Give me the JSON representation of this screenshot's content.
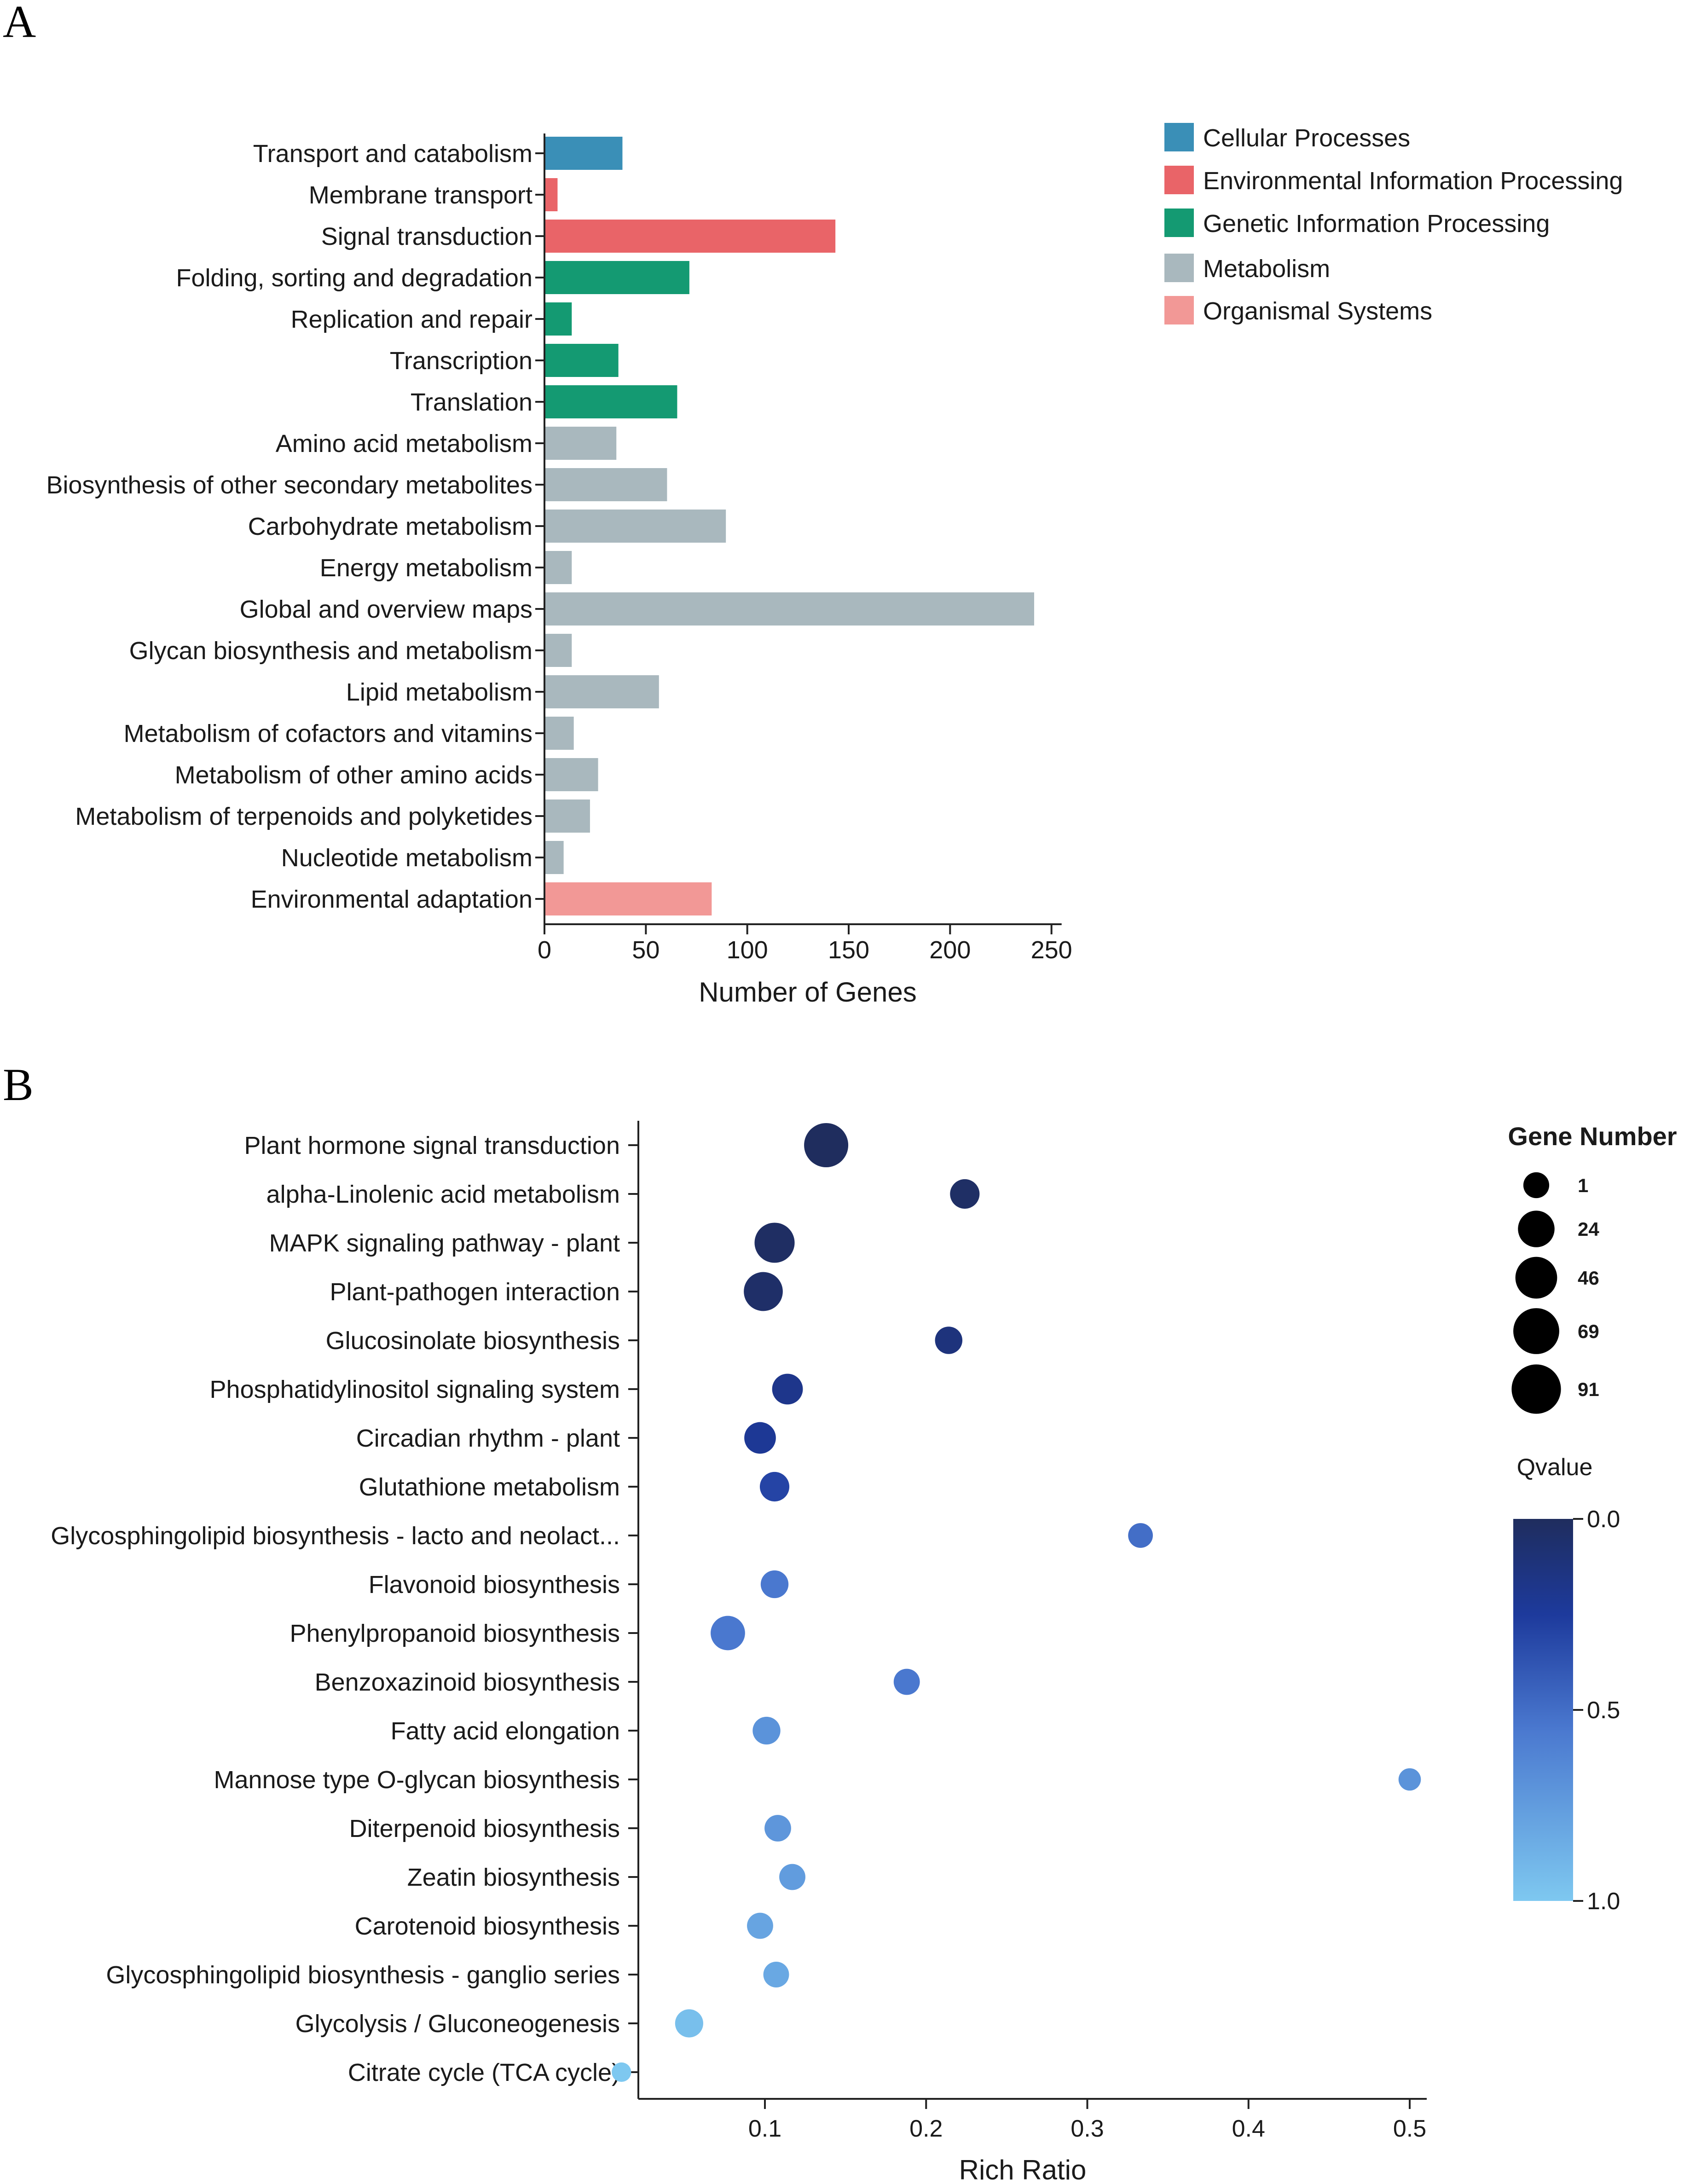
{
  "panel_labels": {
    "a": "A",
    "b": "B"
  },
  "colors": {
    "Cellular Processes": "#3a8fb7",
    "Environmental Information Processing": "#e96468",
    "Genetic Information Processing": "#149a72",
    "Metabolism": "#a9b8be",
    "Organismal Systems": "#f29896"
  },
  "chart_data": [
    {
      "type": "bar",
      "orientation": "horizontal",
      "title": "",
      "xlabel": "Number of Genes",
      "ylabel": "",
      "xlim": [
        0,
        255
      ],
      "xticks": [
        0,
        50,
        100,
        150,
        200,
        250
      ],
      "legend": [
        "Cellular Processes",
        "Environmental Information Processing",
        "Genetic Information Processing",
        "Metabolism",
        "Organismal Systems"
      ],
      "legend_position": "top-right",
      "categories": [
        "Transport and catabolism",
        "Membrane transport",
        "Signal transduction",
        "Folding, sorting and degradation",
        "Replication and repair",
        "Transcription",
        "Translation",
        "Amino acid metabolism",
        "Biosynthesis of other secondary metabolites",
        "Carbohydrate metabolism",
        "Energy metabolism",
        "Global and overview maps",
        "Glycan biosynthesis and metabolism",
        "Lipid metabolism",
        "Metabolism of cofactors and vitamins",
        "Metabolism of other amino acids",
        "Metabolism of terpenoids and polyketides",
        "Nucleotide metabolism",
        "Environmental adaptation"
      ],
      "values": [
        38,
        6,
        143,
        71,
        13,
        36,
        65,
        35,
        60,
        89,
        13,
        241,
        13,
        56,
        14,
        26,
        22,
        9,
        82
      ],
      "groups": [
        "Cellular Processes",
        "Environmental Information Processing",
        "Environmental Information Processing",
        "Genetic Information Processing",
        "Genetic Information Processing",
        "Genetic Information Processing",
        "Genetic Information Processing",
        "Metabolism",
        "Metabolism",
        "Metabolism",
        "Metabolism",
        "Metabolism",
        "Metabolism",
        "Metabolism",
        "Metabolism",
        "Metabolism",
        "Metabolism",
        "Metabolism",
        "Organismal Systems"
      ]
    },
    {
      "type": "scatter",
      "title": "",
      "xlabel": "Rich Ratio",
      "ylabel": "",
      "xlim": [
        0.01,
        0.51
      ],
      "xticks": [
        0.1,
        0.2,
        0.3,
        0.4,
        0.5
      ],
      "size_legend_title": "Gene Number",
      "size_legend_values": [
        1,
        24,
        46,
        69,
        91
      ],
      "color_legend_title": "Qvalue",
      "color_scale": {
        "range": [
          0.0,
          1.0
        ],
        "ticks": [
          "0.0",
          "0.5",
          "1.0"
        ],
        "low_color": "#1f2d5e",
        "mid_color": "#1d3a9c",
        "high_color": "#7ec8f0"
      },
      "points": [
        {
          "term": "Plant hormone signal transduction",
          "rich_ratio": 0.138,
          "genes": 91,
          "qvalue": 0.0
        },
        {
          "term": "alpha-Linolenic acid metabolism",
          "rich_ratio": 0.224,
          "genes": 20,
          "qvalue": 0.03
        },
        {
          "term": "MAPK signaling pathway - plant",
          "rich_ratio": 0.106,
          "genes": 66,
          "qvalue": 0.02
        },
        {
          "term": "Plant-pathogen interaction",
          "rich_ratio": 0.099,
          "genes": 60,
          "qvalue": 0.04
        },
        {
          "term": "Glucosinolate biosynthesis",
          "rich_ratio": 0.214,
          "genes": 14,
          "qvalue": 0.12
        },
        {
          "term": "Phosphatidylinositol signaling system",
          "rich_ratio": 0.114,
          "genes": 24,
          "qvalue": 0.18
        },
        {
          "term": "Circadian rhythm - plant",
          "rich_ratio": 0.097,
          "genes": 27,
          "qvalue": 0.22
        },
        {
          "term": "Glutathione metabolism",
          "rich_ratio": 0.106,
          "genes": 20,
          "qvalue": 0.3
        },
        {
          "term": "Glycosphingolipid biosynthesis - lacto and neolact...",
          "rich_ratio": 0.333,
          "genes": 8,
          "qvalue": 0.5
        },
        {
          "term": "Flavonoid biosynthesis",
          "rich_ratio": 0.106,
          "genes": 15,
          "qvalue": 0.55
        },
        {
          "term": "Phenylpropanoid biosynthesis",
          "rich_ratio": 0.077,
          "genes": 38,
          "qvalue": 0.55
        },
        {
          "term": "Benzoxazinoid biosynthesis",
          "rich_ratio": 0.188,
          "genes": 11,
          "qvalue": 0.55
        },
        {
          "term": "Fatty acid elongation",
          "rich_ratio": 0.101,
          "genes": 15,
          "qvalue": 0.7
        },
        {
          "term": "Mannose type O-glycan biosynthesis",
          "rich_ratio": 0.5,
          "genes": 4,
          "qvalue": 0.7
        },
        {
          "term": "Diterpenoid biosynthesis",
          "rich_ratio": 0.108,
          "genes": 12,
          "qvalue": 0.72
        },
        {
          "term": "Zeatin biosynthesis",
          "rich_ratio": 0.117,
          "genes": 11,
          "qvalue": 0.75
        },
        {
          "term": "Carotenoid biosynthesis",
          "rich_ratio": 0.097,
          "genes": 11,
          "qvalue": 0.8
        },
        {
          "term": "Glycosphingolipid biosynthesis - ganglio series",
          "rich_ratio": 0.107,
          "genes": 10,
          "qvalue": 0.82
        },
        {
          "term": "Glycolysis / Gluconeogenesis",
          "rich_ratio": 0.053,
          "genes": 16,
          "qvalue": 0.95
        },
        {
          "term": "Citrate cycle (TCA cycle)",
          "rich_ratio": 0.011,
          "genes": 1,
          "qvalue": 1.0
        }
      ]
    }
  ]
}
